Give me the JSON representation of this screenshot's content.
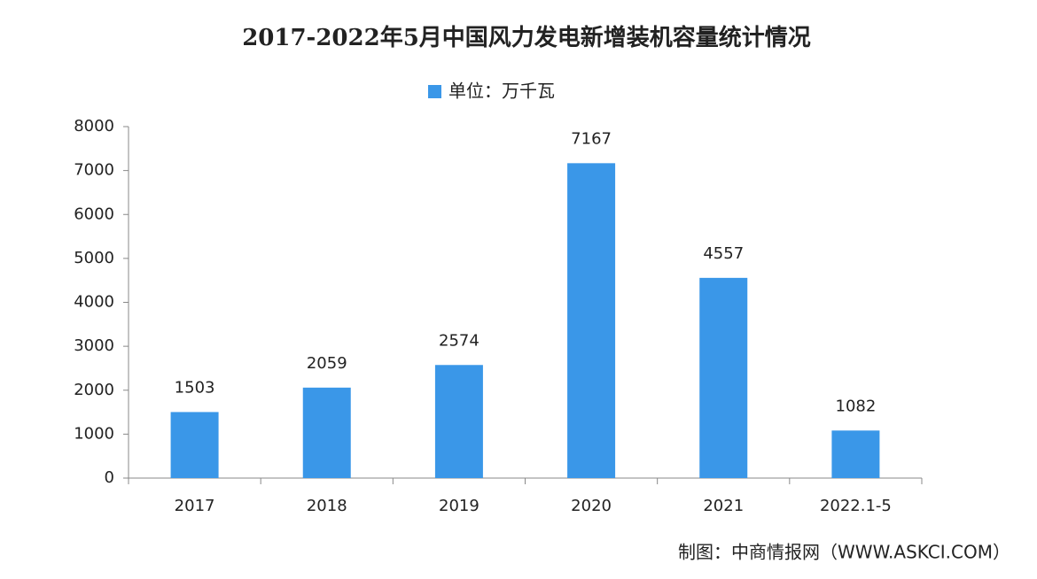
{
  "chart_data": {
    "type": "bar",
    "title": "2017-2022年5月中国风力发电新增装机容量统计情况",
    "categories": [
      "2017",
      "2018",
      "2019",
      "2020",
      "2021",
      "2022.1-5"
    ],
    "series": [
      {
        "name": "单位：万千瓦",
        "color": "#3a97e8",
        "values": [
          1503,
          2059,
          2574,
          7167,
          4557,
          1082
        ]
      }
    ],
    "ylim": [
      0,
      8000
    ],
    "yticks": [
      0,
      1000,
      2000,
      3000,
      4000,
      5000,
      6000,
      7000,
      8000
    ],
    "legend": "top",
    "source": "制图：中商情报网（WWW.ASKCI.COM）"
  }
}
